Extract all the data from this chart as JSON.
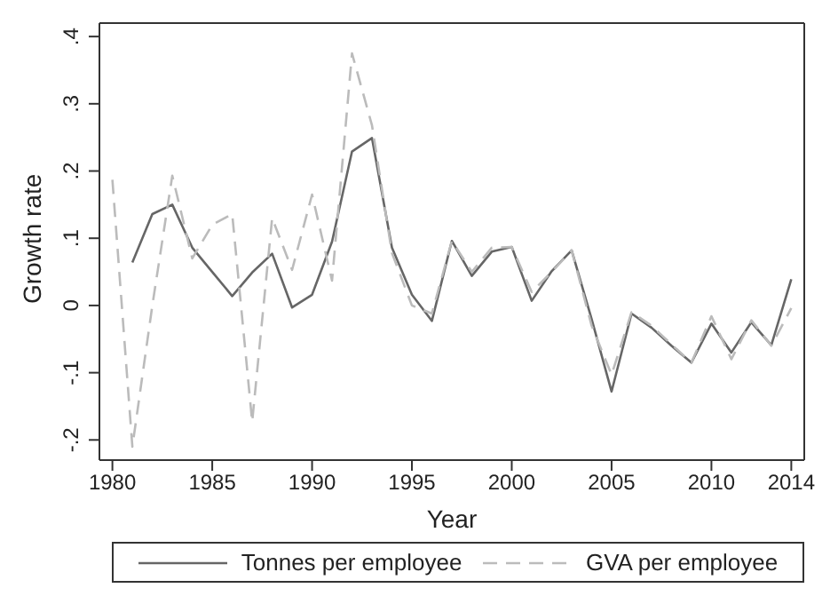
{
  "chart_data": {
    "type": "line",
    "xlabel": "Year",
    "ylabel": "Growth rate",
    "x": [
      1980,
      1981,
      1982,
      1983,
      1984,
      1985,
      1986,
      1987,
      1988,
      1989,
      1990,
      1991,
      1992,
      1993,
      1994,
      1995,
      1996,
      1997,
      1998,
      1999,
      2000,
      2001,
      2002,
      2003,
      2004,
      2005,
      2006,
      2007,
      2008,
      2009,
      2010,
      2011,
      2012,
      2013,
      2014
    ],
    "series": [
      {
        "name": "Tonnes per employee",
        "color": "#666666",
        "line_style": "solid",
        "values": [
          null,
          0.064,
          0.136,
          0.15,
          0.086,
          0.05,
          0.014,
          0.049,
          0.077,
          -0.003,
          0.016,
          0.095,
          0.229,
          0.249,
          0.086,
          0.016,
          -0.023,
          0.096,
          0.044,
          0.08,
          0.087,
          0.007,
          0.051,
          0.082,
          -0.02,
          -0.128,
          -0.012,
          -0.033,
          -0.06,
          -0.085,
          -0.027,
          -0.07,
          -0.025,
          -0.059,
          0.039
        ]
      },
      {
        "name": "GVA per employee",
        "color": "#bbbbbb",
        "line_style": "dashed",
        "values": [
          0.187,
          -0.21,
          0.0,
          0.193,
          0.07,
          0.12,
          0.136,
          -0.173,
          0.13,
          0.053,
          0.165,
          0.037,
          0.375,
          0.268,
          0.078,
          0.0,
          -0.012,
          0.096,
          0.05,
          0.086,
          0.087,
          0.02,
          0.05,
          0.082,
          -0.03,
          -0.103,
          -0.01,
          -0.03,
          -0.058,
          -0.085,
          -0.016,
          -0.08,
          -0.022,
          -0.06,
          -0.004
        ]
      }
    ],
    "xlim": [
      1979.35,
      2014.65
    ],
    "xticks": [
      1980,
      1985,
      1990,
      1995,
      2000,
      2005,
      2010,
      2014
    ],
    "ylim": [
      -0.23,
      0.42
    ],
    "yticks": [
      {
        "value": -0.2,
        "label": "-.2"
      },
      {
        "value": -0.1,
        "label": "-.1"
      },
      0,
      {
        "value": 0.1,
        "label": ".1"
      },
      {
        "value": 0.2,
        "label": ".2"
      },
      {
        "value": 0.3,
        "label": ".3"
      },
      {
        "value": 0.4,
        "label": ".4"
      }
    ],
    "grid": false,
    "legend": "bottom",
    "marker": "none"
  }
}
